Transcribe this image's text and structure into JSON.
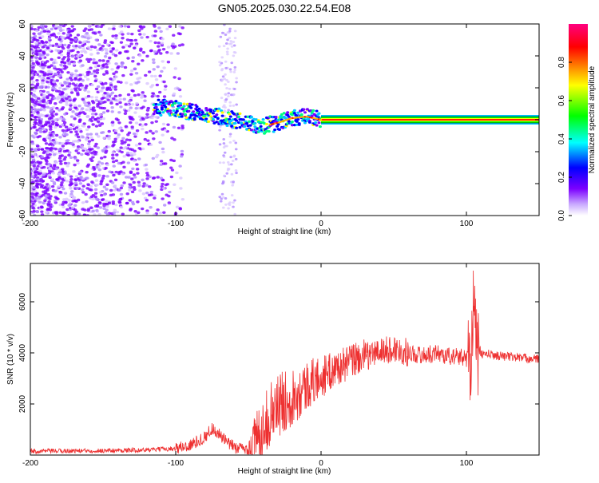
{
  "title": "GN05.2025.030.22.54.E08",
  "chart_data": [
    {
      "type": "heatmap",
      "xlabel": "Height of straight line (km)",
      "ylabel": "Frequency (Hz)",
      "xlim": [
        -200,
        150
      ],
      "ylim": [
        -60,
        60
      ],
      "xticks": [
        -200,
        -100,
        0,
        100
      ],
      "yticks": [
        -60,
        -40,
        -20,
        0,
        20,
        40,
        60
      ],
      "ridge": {
        "x": [
          -115,
          -100,
          -90,
          -80,
          -70,
          -60,
          -50,
          -40,
          -30,
          -20,
          -10,
          -5,
          0,
          50,
          100,
          105,
          150
        ],
        "frequency": [
          8,
          7,
          5,
          4,
          2,
          0,
          -2,
          -4,
          -2,
          1,
          2,
          1,
          0,
          0,
          0,
          0,
          0
        ]
      },
      "colorbar": {
        "label": "Normalized spectral amplitude",
        "range": [
          0,
          1
        ],
        "ticks": [
          "0.0",
          "0.2",
          "0.4",
          "0.6",
          "0.8"
        ],
        "colors": [
          "#ffffff",
          "#7c00ff",
          "#0000ff",
          "#00ffff",
          "#00ff00",
          "#ffff00",
          "#ff8000",
          "#ff0000",
          "#ff0080"
        ]
      }
    },
    {
      "type": "line",
      "xlabel": "Height of straight line (km)",
      "ylabel": "SNR (10 * v/v)",
      "xlim": [
        -200,
        150
      ],
      "ylim": [
        0,
        7500
      ],
      "xticks": [
        -200,
        -100,
        0,
        100
      ],
      "yticks": [
        2000,
        4000,
        6000
      ],
      "series": [
        {
          "name": "SNR",
          "color": "#ee3030",
          "x": [
            -200,
            -180,
            -160,
            -140,
            -120,
            -100,
            -90,
            -80,
            -75,
            -70,
            -65,
            -60,
            -55,
            -50,
            -45,
            -40,
            -35,
            -30,
            -25,
            -20,
            -15,
            -10,
            -5,
            0,
            5,
            10,
            15,
            20,
            25,
            30,
            35,
            40,
            45,
            50,
            55,
            60,
            65,
            70,
            75,
            80,
            85,
            90,
            95,
            100,
            103,
            105,
            107,
            110,
            115,
            120,
            130,
            140,
            150
          ],
          "y": [
            150,
            160,
            170,
            180,
            200,
            260,
            380,
            700,
            1050,
            800,
            500,
            320,
            250,
            220,
            600,
            1100,
            1600,
            1900,
            2100,
            2300,
            2500,
            2700,
            2900,
            3050,
            3200,
            3400,
            3500,
            3650,
            3800,
            3850,
            3950,
            4050,
            4100,
            4150,
            4100,
            4000,
            3950,
            3900,
            3950,
            4000,
            3900,
            3850,
            3850,
            3800,
            3900,
            6200,
            4000,
            3950,
            3950,
            3900,
            3850,
            3800,
            3750
          ]
        }
      ]
    }
  ]
}
